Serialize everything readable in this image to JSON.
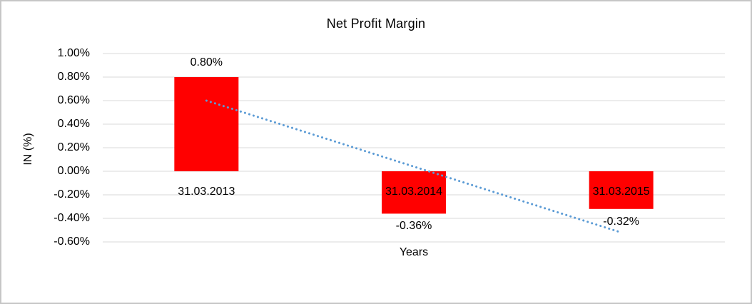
{
  "chart_data": {
    "type": "bar",
    "title": "Net Profit Margin",
    "xlabel": "Years",
    "ylabel": "IN (%)",
    "categories": [
      "31.03.2013",
      "31.03.2014",
      "31.03.2015"
    ],
    "values": [
      0.8,
      -0.36,
      -0.32
    ],
    "data_labels": [
      "0.80%",
      "-0.36%",
      "-0.32%"
    ],
    "y_ticks": [
      {
        "label": "1.00%",
        "value": 1.0
      },
      {
        "label": "0.80%",
        "value": 0.8
      },
      {
        "label": "0.60%",
        "value": 0.6
      },
      {
        "label": "0.40%",
        "value": 0.4
      },
      {
        "label": "0.20%",
        "value": 0.2
      },
      {
        "label": "0.00%",
        "value": 0.0
      },
      {
        "label": "-0.20%",
        "value": -0.2
      },
      {
        "label": "-0.40%",
        "value": -0.4
      },
      {
        "label": "-0.60%",
        "value": -0.6
      }
    ],
    "ylim": [
      -0.6,
      1.0
    ],
    "grid": true,
    "legend": "none",
    "colors": {
      "bar": "#ff0000",
      "gridline": "#d9d9d9",
      "trendline": "#5b9bd5",
      "text": "#000000"
    },
    "trendline": {
      "type": "linear",
      "style": "dotted",
      "start_value": 0.6,
      "end_value": -0.52
    }
  }
}
